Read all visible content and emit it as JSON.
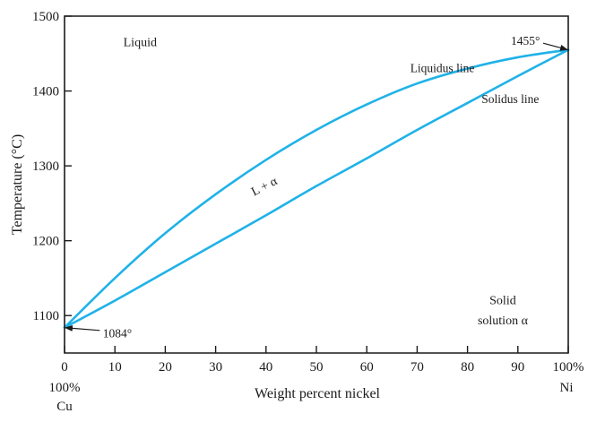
{
  "chart_data": {
    "type": "line",
    "xlabel": "Weight percent nickel",
    "ylabel": "Temperature (°C)",
    "xlim": [
      0,
      100
    ],
    "ylim": [
      1050,
      1500
    ],
    "x_ticks": [
      0,
      10,
      20,
      30,
      40,
      50,
      60,
      70,
      80,
      90,
      100
    ],
    "x_tick_labels": [
      "0",
      "10",
      "20",
      "30",
      "40",
      "50",
      "60",
      "70",
      "80",
      "90",
      "100%"
    ],
    "y_ticks": [
      1100,
      1200,
      1300,
      1400,
      1500
    ],
    "y_tick_labels": [
      "1100",
      "1200",
      "1300",
      "1400",
      "1500"
    ],
    "x_end_labels": {
      "left": [
        "100%",
        "Cu"
      ],
      "right": [
        "Ni"
      ]
    },
    "grid": false,
    "series_color": "#1fb2e8",
    "series": [
      {
        "name": "Liquidus line",
        "x": [
          0,
          10,
          20,
          30,
          40,
          50,
          60,
          70,
          80,
          90,
          100
        ],
        "y": [
          1084,
          1150,
          1210,
          1262,
          1308,
          1348,
          1382,
          1410,
          1430,
          1445,
          1455
        ]
      },
      {
        "name": "Solidus line",
        "x": [
          0,
          10,
          20,
          30,
          40,
          50,
          60,
          70,
          80,
          90,
          100
        ],
        "y": [
          1084,
          1120,
          1158,
          1196,
          1234,
          1273,
          1310,
          1348,
          1384,
          1420,
          1455
        ]
      }
    ],
    "annotations": [
      {
        "text": "Liquid",
        "x": 15,
        "y": 1460
      },
      {
        "text": "L + α",
        "x": 40,
        "y": 1268,
        "rotate": true
      },
      {
        "text": "Solid",
        "x": 87,
        "y": 1115
      },
      {
        "text": "solution α",
        "x": 87,
        "y": 1088
      },
      {
        "text": "1455°",
        "x": 91.5,
        "y": 1462,
        "arrow_to": [
          100,
          1455
        ]
      },
      {
        "text": "1084°",
        "x": 10.5,
        "y": 1071,
        "arrow_to": [
          0,
          1084
        ]
      }
    ]
  }
}
